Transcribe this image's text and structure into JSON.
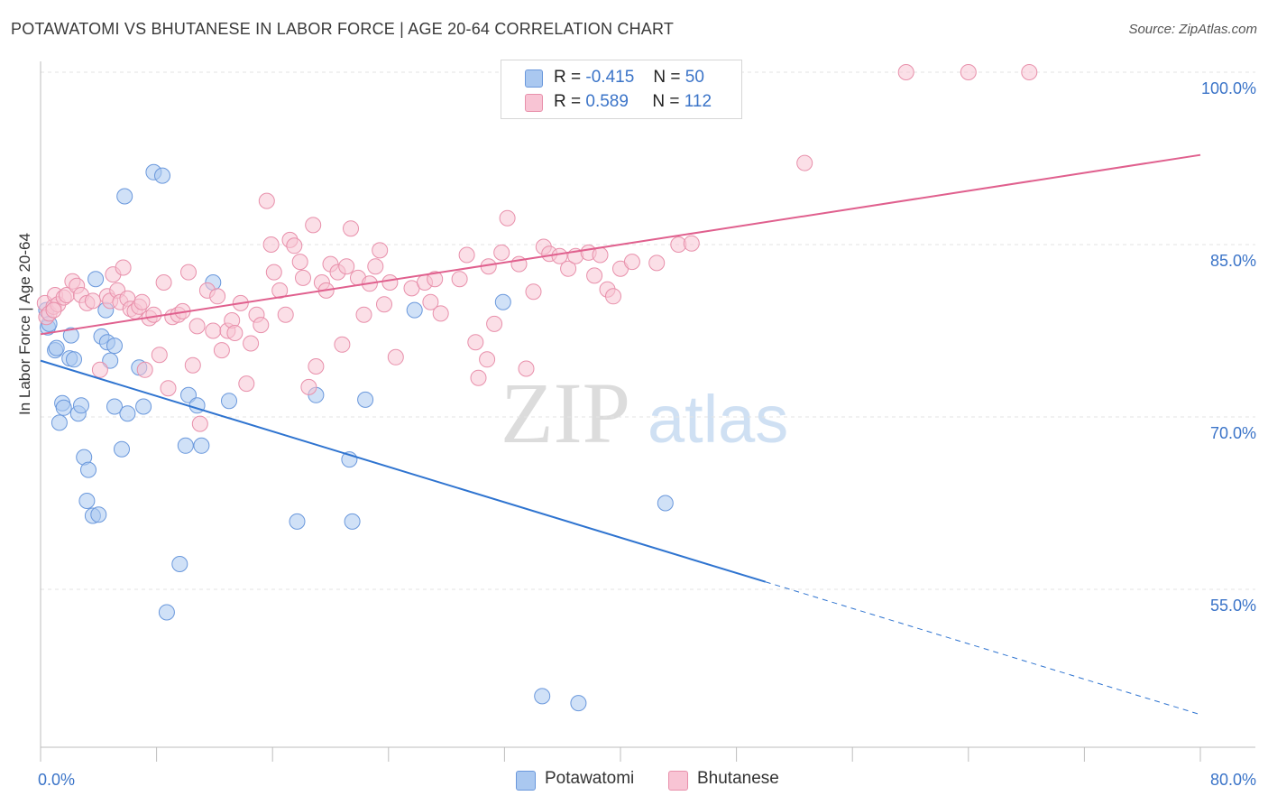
{
  "header": {
    "title": "POTAWATOMI VS BHUTANESE IN LABOR FORCE | AGE 20-64 CORRELATION CHART",
    "source": "Source: ZipAtlas.com"
  },
  "legend": {
    "rows": [
      {
        "r_label": "R =",
        "r_value": "-0.415",
        "n_label": "N =",
        "n_value": "50",
        "color": "#aac8f0",
        "stroke": "#6a98dc"
      },
      {
        "r_label": "R =",
        "r_value": "0.589",
        "n_label": "N =",
        "n_value": "112",
        "color": "#f8c4d4",
        "stroke": "#e890ab"
      }
    ]
  },
  "bottom_legend": [
    "Potawatomi",
    "Bhutanese"
  ],
  "watermark": {
    "zip": "ZIP",
    "atlas": "atlas"
  },
  "chart_data": {
    "type": "scatter",
    "ylabel": "In Labor Force | Age 20-64",
    "xlim": [
      0,
      80
    ],
    "ylim": [
      40,
      103
    ],
    "y_ticks": [
      55,
      70,
      85,
      100
    ],
    "y_tick_labels": [
      "55.0%",
      "70.0%",
      "85.0%",
      "100.0%"
    ],
    "x_tick_labels": [
      "0.0%",
      "80.0%"
    ],
    "grid": "horizontal dashed",
    "series": [
      {
        "name": "Potawatomi",
        "color": "#aac8f0",
        "stroke": "#6a98dc",
        "line_color": "#2f74d0",
        "trend": {
          "x0": 0,
          "y0": 74.9,
          "x1": 80,
          "y1": 44.1,
          "solid_until": 50
        },
        "points": [
          [
            0.4,
            79.3
          ],
          [
            0.5,
            77.8
          ],
          [
            1.0,
            75.8
          ],
          [
            1.1,
            76.0
          ],
          [
            1.3,
            69.5
          ],
          [
            1.5,
            71.2
          ],
          [
            1.6,
            70.8
          ],
          [
            2.0,
            75.1
          ],
          [
            2.1,
            77.1
          ],
          [
            2.3,
            75.0
          ],
          [
            2.6,
            70.3
          ],
          [
            2.8,
            71.0
          ],
          [
            3.0,
            66.5
          ],
          [
            3.3,
            65.4
          ],
          [
            3.2,
            62.7
          ],
          [
            3.6,
            61.4
          ],
          [
            4.0,
            61.5
          ],
          [
            3.8,
            82.0
          ],
          [
            4.2,
            77.0
          ],
          [
            4.5,
            79.3
          ],
          [
            4.6,
            76.5
          ],
          [
            4.8,
            74.9
          ],
          [
            5.1,
            76.2
          ],
          [
            5.1,
            70.9
          ],
          [
            5.6,
            67.2
          ],
          [
            5.8,
            89.2
          ],
          [
            6.0,
            70.3
          ],
          [
            6.8,
            74.3
          ],
          [
            7.1,
            70.9
          ],
          [
            7.8,
            91.3
          ],
          [
            8.4,
            91.0
          ],
          [
            8.7,
            53.0
          ],
          [
            9.6,
            57.2
          ],
          [
            10.0,
            67.5
          ],
          [
            10.2,
            71.9
          ],
          [
            10.8,
            71.0
          ],
          [
            11.1,
            67.5
          ],
          [
            11.9,
            81.7
          ],
          [
            13.0,
            71.4
          ],
          [
            17.7,
            60.9
          ],
          [
            19.0,
            71.9
          ],
          [
            21.3,
            66.3
          ],
          [
            21.5,
            60.9
          ],
          [
            22.4,
            71.5
          ],
          [
            25.8,
            79.3
          ],
          [
            31.9,
            80.0
          ],
          [
            34.6,
            45.7
          ],
          [
            37.1,
            45.1
          ],
          [
            43.1,
            62.5
          ],
          [
            0.6,
            78.1
          ]
        ]
      },
      {
        "name": "Bhutanese",
        "color": "#f8c4d4",
        "stroke": "#e890ab",
        "line_color": "#e0608e",
        "trend": {
          "x0": 0,
          "y0": 77.2,
          "x1": 80,
          "y1": 92.8,
          "solid_until": 80
        },
        "points": [
          [
            0.3,
            79.9
          ],
          [
            0.4,
            78.7
          ],
          [
            0.6,
            79.0
          ],
          [
            0.9,
            79.6
          ],
          [
            1.0,
            80.6
          ],
          [
            1.2,
            79.8
          ],
          [
            1.6,
            80.4
          ],
          [
            1.8,
            80.6
          ],
          [
            2.2,
            81.8
          ],
          [
            2.5,
            81.4
          ],
          [
            2.8,
            80.6
          ],
          [
            3.2,
            79.9
          ],
          [
            3.6,
            80.1
          ],
          [
            4.1,
            74.1
          ],
          [
            4.6,
            80.5
          ],
          [
            4.8,
            80.1
          ],
          [
            5.0,
            82.4
          ],
          [
            5.3,
            81.0
          ],
          [
            5.5,
            80.0
          ],
          [
            5.7,
            83.0
          ],
          [
            6.0,
            80.3
          ],
          [
            6.2,
            79.4
          ],
          [
            6.5,
            79.2
          ],
          [
            6.8,
            79.6
          ],
          [
            7.0,
            80.0
          ],
          [
            7.2,
            74.1
          ],
          [
            7.5,
            78.6
          ],
          [
            7.8,
            78.9
          ],
          [
            8.2,
            75.4
          ],
          [
            8.5,
            81.7
          ],
          [
            8.8,
            72.5
          ],
          [
            9.1,
            78.7
          ],
          [
            9.5,
            78.9
          ],
          [
            9.8,
            79.2
          ],
          [
            10.2,
            82.6
          ],
          [
            10.5,
            74.5
          ],
          [
            10.8,
            77.9
          ],
          [
            11.0,
            69.4
          ],
          [
            11.5,
            81.0
          ],
          [
            11.9,
            77.5
          ],
          [
            12.2,
            80.5
          ],
          [
            12.5,
            75.8
          ],
          [
            12.9,
            77.5
          ],
          [
            13.2,
            78.4
          ],
          [
            13.4,
            77.3
          ],
          [
            13.8,
            79.9
          ],
          [
            14.2,
            72.9
          ],
          [
            14.5,
            76.4
          ],
          [
            14.9,
            78.9
          ],
          [
            15.2,
            78.0
          ],
          [
            15.6,
            88.8
          ],
          [
            15.9,
            85.0
          ],
          [
            16.1,
            82.6
          ],
          [
            16.5,
            81.0
          ],
          [
            16.9,
            78.9
          ],
          [
            17.2,
            85.4
          ],
          [
            17.5,
            84.9
          ],
          [
            17.9,
            83.5
          ],
          [
            18.1,
            82.1
          ],
          [
            18.5,
            72.6
          ],
          [
            18.8,
            86.7
          ],
          [
            19.0,
            74.4
          ],
          [
            19.4,
            81.7
          ],
          [
            19.7,
            81.0
          ],
          [
            20.0,
            83.3
          ],
          [
            20.5,
            82.6
          ],
          [
            20.8,
            76.3
          ],
          [
            21.1,
            83.1
          ],
          [
            21.4,
            86.4
          ],
          [
            21.9,
            82.1
          ],
          [
            22.3,
            78.9
          ],
          [
            22.7,
            81.6
          ],
          [
            23.1,
            83.1
          ],
          [
            23.4,
            84.5
          ],
          [
            23.7,
            79.8
          ],
          [
            24.1,
            81.7
          ],
          [
            24.5,
            75.2
          ],
          [
            25.6,
            81.2
          ],
          [
            26.5,
            81.7
          ],
          [
            26.9,
            80.0
          ],
          [
            27.2,
            82.0
          ],
          [
            27.6,
            79.0
          ],
          [
            28.9,
            82.0
          ],
          [
            29.4,
            84.1
          ],
          [
            30.0,
            76.5
          ],
          [
            30.2,
            73.4
          ],
          [
            30.8,
            75.0
          ],
          [
            30.9,
            83.1
          ],
          [
            31.3,
            78.1
          ],
          [
            31.8,
            84.3
          ],
          [
            32.2,
            87.3
          ],
          [
            33.0,
            83.3
          ],
          [
            33.5,
            74.2
          ],
          [
            34.0,
            80.9
          ],
          [
            34.7,
            84.8
          ],
          [
            35.1,
            84.2
          ],
          [
            35.8,
            84.0
          ],
          [
            36.4,
            82.9
          ],
          [
            36.9,
            84.0
          ],
          [
            37.8,
            84.3
          ],
          [
            38.2,
            82.3
          ],
          [
            38.6,
            84.1
          ],
          [
            39.1,
            81.1
          ],
          [
            39.5,
            80.5
          ],
          [
            40.0,
            82.9
          ],
          [
            40.8,
            83.5
          ],
          [
            42.5,
            83.4
          ],
          [
            44.0,
            85.0
          ],
          [
            44.9,
            85.1
          ],
          [
            52.7,
            92.1
          ],
          [
            59.7,
            100.0
          ],
          [
            64.0,
            100.0
          ],
          [
            68.2,
            100.0
          ],
          [
            0.9,
            79.3
          ]
        ]
      }
    ]
  }
}
